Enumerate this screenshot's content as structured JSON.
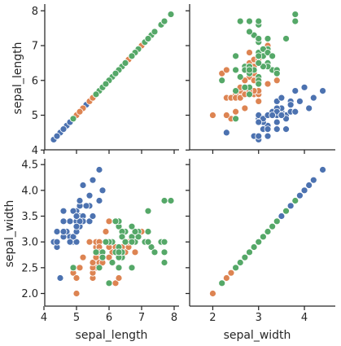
{
  "chart_data": {
    "type": "scatter",
    "layout": "pairplot",
    "variables": [
      "sepal_length",
      "sepal_width"
    ],
    "axis_labels": {
      "sepal_length": "sepal_length",
      "sepal_width": "sepal_width"
    },
    "ranges": {
      "sepal_length": [
        4.1,
        8.1
      ],
      "sepal_width": [
        1.85,
        4.55
      ]
    },
    "ticks": {
      "sepal_length": [
        4,
        5,
        6,
        7,
        8
      ],
      "sepal_width": [
        2.0,
        2.5,
        3.0,
        3.5,
        4.0,
        4.5
      ],
      "sepal_width_x": [
        2,
        3,
        4
      ]
    },
    "tick_labels": {
      "sepal_length": [
        "4",
        "5",
        "6",
        "7",
        "8"
      ],
      "sepal_width": [
        "2.0",
        "2.5",
        "3.0",
        "3.5",
        "4.0",
        "4.5"
      ],
      "sepal_width_x": [
        "2",
        "3",
        "4"
      ]
    },
    "colors": [
      "#4c72b0",
      "#dd8452",
      "#55a868"
    ],
    "series": [
      {
        "points": [
          [
            5.1,
            3.5
          ],
          [
            4.9,
            3.0
          ],
          [
            4.7,
            3.2
          ],
          [
            4.6,
            3.1
          ],
          [
            5.0,
            3.6
          ],
          [
            5.4,
            3.9
          ],
          [
            4.6,
            3.4
          ],
          [
            5.0,
            3.4
          ],
          [
            4.4,
            2.9
          ],
          [
            4.9,
            3.1
          ],
          [
            5.4,
            3.7
          ],
          [
            4.8,
            3.4
          ],
          [
            4.8,
            3.0
          ],
          [
            4.3,
            3.0
          ],
          [
            5.8,
            4.0
          ],
          [
            5.7,
            4.4
          ],
          [
            5.4,
            3.9
          ],
          [
            5.1,
            3.5
          ],
          [
            5.7,
            3.8
          ],
          [
            5.1,
            3.8
          ],
          [
            5.4,
            3.4
          ],
          [
            5.1,
            3.7
          ],
          [
            4.6,
            3.6
          ],
          [
            5.1,
            3.3
          ],
          [
            4.8,
            3.4
          ],
          [
            5.0,
            3.0
          ],
          [
            5.0,
            3.4
          ],
          [
            5.2,
            3.5
          ],
          [
            5.2,
            3.4
          ],
          [
            4.7,
            3.2
          ],
          [
            4.8,
            3.1
          ],
          [
            5.4,
            3.4
          ],
          [
            5.2,
            4.1
          ],
          [
            5.5,
            4.2
          ],
          [
            4.9,
            3.1
          ],
          [
            5.0,
            3.2
          ],
          [
            5.5,
            3.5
          ],
          [
            4.9,
            3.6
          ],
          [
            4.4,
            3.0
          ],
          [
            5.1,
            3.4
          ],
          [
            5.0,
            3.5
          ],
          [
            4.5,
            2.3
          ],
          [
            4.4,
            3.2
          ],
          [
            5.0,
            3.5
          ],
          [
            5.1,
            3.8
          ],
          [
            4.8,
            3.0
          ],
          [
            5.1,
            3.8
          ],
          [
            4.6,
            3.2
          ],
          [
            5.3,
            3.7
          ],
          [
            5.0,
            3.3
          ]
        ]
      },
      {
        "points": [
          [
            7.0,
            3.2
          ],
          [
            6.4,
            3.2
          ],
          [
            6.9,
            3.1
          ],
          [
            5.5,
            2.3
          ],
          [
            6.5,
            2.8
          ],
          [
            5.7,
            2.8
          ],
          [
            6.3,
            3.3
          ],
          [
            4.9,
            2.4
          ],
          [
            6.6,
            2.9
          ],
          [
            5.2,
            2.7
          ],
          [
            5.0,
            2.0
          ],
          [
            5.9,
            3.0
          ],
          [
            6.0,
            2.2
          ],
          [
            6.1,
            2.9
          ],
          [
            5.6,
            2.9
          ],
          [
            6.7,
            3.1
          ],
          [
            5.6,
            3.0
          ],
          [
            5.8,
            2.7
          ],
          [
            6.2,
            2.2
          ],
          [
            5.6,
            2.5
          ],
          [
            5.9,
            3.2
          ],
          [
            6.1,
            2.8
          ],
          [
            6.3,
            2.5
          ],
          [
            6.1,
            2.8
          ],
          [
            6.4,
            2.9
          ],
          [
            6.6,
            3.0
          ],
          [
            6.8,
            2.8
          ],
          [
            6.7,
            3.0
          ],
          [
            6.0,
            2.9
          ],
          [
            5.7,
            2.6
          ],
          [
            5.5,
            2.4
          ],
          [
            5.5,
            2.4
          ],
          [
            5.8,
            2.7
          ],
          [
            6.0,
            2.7
          ],
          [
            5.4,
            3.0
          ],
          [
            6.0,
            3.4
          ],
          [
            6.7,
            3.1
          ],
          [
            6.3,
            2.3
          ],
          [
            5.6,
            3.0
          ],
          [
            5.5,
            2.5
          ],
          [
            5.5,
            2.6
          ],
          [
            6.1,
            3.0
          ],
          [
            5.8,
            2.6
          ],
          [
            5.0,
            2.3
          ],
          [
            5.6,
            2.7
          ],
          [
            5.7,
            3.0
          ],
          [
            5.7,
            2.9
          ],
          [
            6.2,
            2.9
          ],
          [
            5.1,
            2.5
          ],
          [
            5.7,
            2.8
          ]
        ]
      },
      {
        "points": [
          [
            6.3,
            3.3
          ],
          [
            5.8,
            2.7
          ],
          [
            7.1,
            3.0
          ],
          [
            6.3,
            2.9
          ],
          [
            6.5,
            3.0
          ],
          [
            7.6,
            3.0
          ],
          [
            4.9,
            2.5
          ],
          [
            7.3,
            2.9
          ],
          [
            6.7,
            2.5
          ],
          [
            7.2,
            3.6
          ],
          [
            6.5,
            3.2
          ],
          [
            6.4,
            2.7
          ],
          [
            6.8,
            3.0
          ],
          [
            5.7,
            2.5
          ],
          [
            5.8,
            2.8
          ],
          [
            6.4,
            3.2
          ],
          [
            6.5,
            3.0
          ],
          [
            7.7,
            3.8
          ],
          [
            7.7,
            2.6
          ],
          [
            6.0,
            2.2
          ],
          [
            6.9,
            3.2
          ],
          [
            5.6,
            2.8
          ],
          [
            7.7,
            2.8
          ],
          [
            6.3,
            2.7
          ],
          [
            6.7,
            3.3
          ],
          [
            7.2,
            3.2
          ],
          [
            6.2,
            2.8
          ],
          [
            6.1,
            3.0
          ],
          [
            6.4,
            2.8
          ],
          [
            7.2,
            3.0
          ],
          [
            7.4,
            2.8
          ],
          [
            7.9,
            3.8
          ],
          [
            6.4,
            2.8
          ],
          [
            6.3,
            2.8
          ],
          [
            6.1,
            2.6
          ],
          [
            7.7,
            3.0
          ],
          [
            6.3,
            3.4
          ],
          [
            6.4,
            3.1
          ],
          [
            6.0,
            3.0
          ],
          [
            6.9,
            3.1
          ],
          [
            6.7,
            3.1
          ],
          [
            6.9,
            3.1
          ],
          [
            5.8,
            2.7
          ],
          [
            6.8,
            3.2
          ],
          [
            6.7,
            3.3
          ],
          [
            6.7,
            3.0
          ],
          [
            6.3,
            2.5
          ],
          [
            6.5,
            3.0
          ],
          [
            6.2,
            3.4
          ],
          [
            5.9,
            3.0
          ]
        ]
      }
    ]
  }
}
